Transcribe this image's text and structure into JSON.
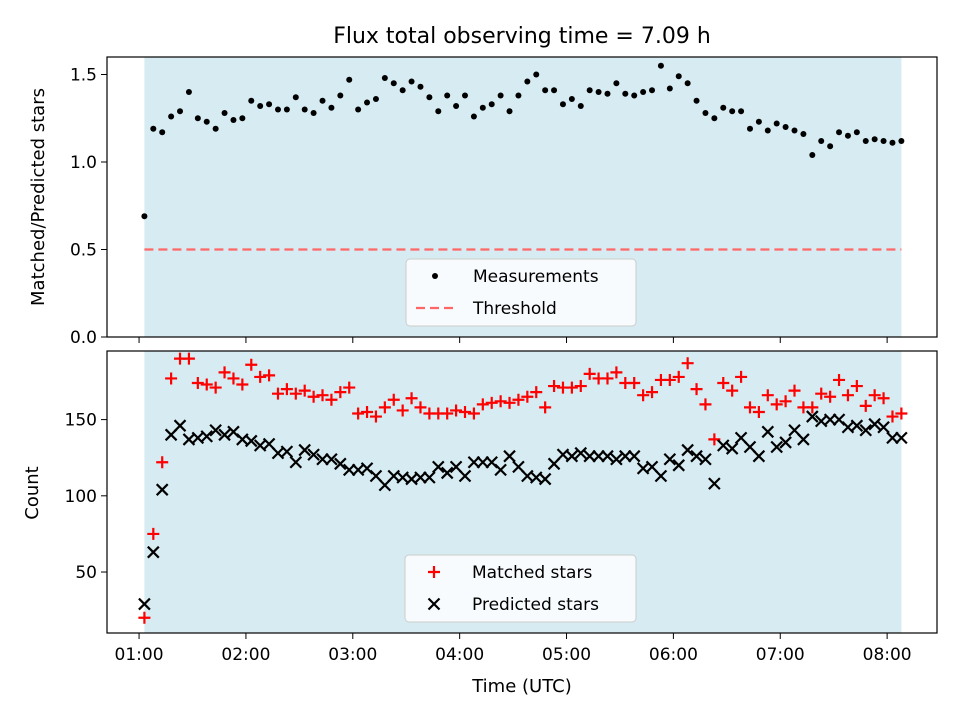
{
  "chart_data": [
    {
      "type": "scatter",
      "title": "Flux total observing time = 7.09 h",
      "ylabel": "Matched/Predicted stars",
      "xlabel": "",
      "xlim": [
        "00:42",
        "08:28"
      ],
      "ylim": [
        0,
        1.6
      ],
      "yticks": [
        0.0,
        0.5,
        1.0,
        1.5
      ],
      "ytick_labels": [
        "0.0",
        "0.5",
        "1.0",
        "1.5"
      ],
      "shaded_span": [
        "01:03",
        "08:08"
      ],
      "shade_color": "#add8e6",
      "legend_position": "lower center",
      "series": [
        {
          "name": "Measurements",
          "marker": "dot",
          "color": "#000000",
          "x": [
            "01:03",
            "01:08",
            "01:13",
            "01:18",
            "01:23",
            "01:28",
            "01:33",
            "01:38",
            "01:43",
            "01:48",
            "01:53",
            "01:58",
            "02:03",
            "02:08",
            "02:13",
            "02:18",
            "02:23",
            "02:28",
            "02:33",
            "02:38",
            "02:43",
            "02:48",
            "02:53",
            "02:58",
            "03:03",
            "03:08",
            "03:13",
            "03:18",
            "03:23",
            "03:28",
            "03:33",
            "03:38",
            "03:43",
            "03:48",
            "03:53",
            "03:58",
            "04:03",
            "04:08",
            "04:13",
            "04:18",
            "04:23",
            "04:28",
            "04:33",
            "04:38",
            "04:43",
            "04:48",
            "04:53",
            "04:58",
            "05:03",
            "05:08",
            "05:13",
            "05:18",
            "05:23",
            "05:28",
            "05:33",
            "05:38",
            "05:43",
            "05:48",
            "05:53",
            "05:58",
            "06:03",
            "06:08",
            "06:13",
            "06:18",
            "06:23",
            "06:28",
            "06:33",
            "06:38",
            "06:43",
            "06:48",
            "06:53",
            "06:58",
            "07:03",
            "07:08",
            "07:13",
            "07:18",
            "07:23",
            "07:28",
            "07:33",
            "07:38",
            "07:43",
            "07:48",
            "07:53",
            "07:58",
            "08:03",
            "08:08"
          ],
          "y": [
            0.69,
            1.19,
            1.17,
            1.26,
            1.29,
            1.4,
            1.25,
            1.23,
            1.19,
            1.28,
            1.24,
            1.25,
            1.35,
            1.32,
            1.33,
            1.3,
            1.3,
            1.37,
            1.3,
            1.28,
            1.35,
            1.31,
            1.38,
            1.47,
            1.3,
            1.34,
            1.36,
            1.48,
            1.45,
            1.41,
            1.46,
            1.43,
            1.37,
            1.29,
            1.38,
            1.32,
            1.38,
            1.26,
            1.31,
            1.33,
            1.38,
            1.29,
            1.38,
            1.46,
            1.5,
            1.41,
            1.41,
            1.33,
            1.36,
            1.32,
            1.41,
            1.4,
            1.39,
            1.45,
            1.39,
            1.38,
            1.4,
            1.41,
            1.55,
            1.42,
            1.49,
            1.45,
            1.35,
            1.28,
            1.25,
            1.31,
            1.29,
            1.29,
            1.19,
            1.23,
            1.18,
            1.22,
            1.2,
            1.18,
            1.16,
            1.04,
            1.12,
            1.09,
            1.17,
            1.15,
            1.17,
            1.12,
            1.13,
            1.12,
            1.11,
            1.12
          ]
        },
        {
          "name": "Threshold",
          "type": "hline",
          "style": "dashed",
          "color": "#ff6666",
          "y": 0.5,
          "x_range": [
            "01:03",
            "08:08"
          ]
        }
      ]
    },
    {
      "type": "scatter",
      "title": "",
      "ylabel": "Count",
      "xlabel": "Time (UTC)",
      "xlim": [
        "00:42",
        "08:28"
      ],
      "ylim": [
        10,
        195
      ],
      "yticks": [
        50,
        100,
        150
      ],
      "ytick_labels": [
        "50",
        "100",
        "150"
      ],
      "xticks": [
        "01:00",
        "02:00",
        "03:00",
        "04:00",
        "05:00",
        "06:00",
        "07:00",
        "08:00"
      ],
      "shaded_span": [
        "01:03",
        "08:08"
      ],
      "shade_color": "#add8e6",
      "legend_position": "lower center",
      "series": [
        {
          "name": "Matched stars",
          "marker": "plus",
          "color": "#ff0000",
          "x": [
            "01:03",
            "01:08",
            "01:13",
            "01:18",
            "01:23",
            "01:28",
            "01:33",
            "01:38",
            "01:43",
            "01:48",
            "01:53",
            "01:58",
            "02:03",
            "02:08",
            "02:13",
            "02:18",
            "02:23",
            "02:28",
            "02:33",
            "02:38",
            "02:43",
            "02:48",
            "02:53",
            "02:58",
            "03:03",
            "03:08",
            "03:13",
            "03:18",
            "03:23",
            "03:28",
            "03:33",
            "03:38",
            "03:43",
            "03:48",
            "03:53",
            "03:58",
            "04:03",
            "04:08",
            "04:13",
            "04:18",
            "04:23",
            "04:28",
            "04:33",
            "04:38",
            "04:43",
            "04:48",
            "04:53",
            "04:58",
            "05:03",
            "05:08",
            "05:13",
            "05:18",
            "05:23",
            "05:28",
            "05:33",
            "05:38",
            "05:43",
            "05:48",
            "05:53",
            "05:58",
            "06:03",
            "06:08",
            "06:13",
            "06:18",
            "06:23",
            "06:28",
            "06:33",
            "06:38",
            "06:43",
            "06:48",
            "06:53",
            "06:58",
            "07:03",
            "07:08",
            "07:13",
            "07:18",
            "07:23",
            "07:28",
            "07:33",
            "07:38",
            "07:43",
            "07:48",
            "07:53",
            "07:58",
            "08:03",
            "08:08"
          ],
          "y": [
            20,
            75,
            122,
            177,
            190,
            190,
            174,
            173,
            171,
            181,
            177,
            173,
            186,
            178,
            179,
            167,
            170,
            167,
            169,
            165,
            166,
            163,
            168,
            171,
            154,
            155,
            152,
            158,
            163,
            156,
            164,
            158,
            154,
            154,
            154,
            156,
            155,
            154,
            160,
            161,
            162,
            161,
            163,
            165,
            168,
            158,
            172,
            171,
            171,
            172,
            180,
            177,
            177,
            181,
            174,
            174,
            166,
            168,
            176,
            176,
            178,
            187,
            170,
            160,
            137,
            174,
            169,
            178,
            158,
            155,
            166,
            160,
            162,
            169,
            158,
            158,
            167,
            165,
            176,
            166,
            172,
            159,
            166,
            164,
            152,
            154
          ]
        },
        {
          "name": "Predicted stars",
          "marker": "x",
          "color": "#000000",
          "x": [
            "01:03",
            "01:08",
            "01:13",
            "01:18",
            "01:23",
            "01:28",
            "01:33",
            "01:38",
            "01:43",
            "01:48",
            "01:53",
            "01:58",
            "02:03",
            "02:08",
            "02:13",
            "02:18",
            "02:23",
            "02:28",
            "02:33",
            "02:38",
            "02:43",
            "02:48",
            "02:53",
            "02:58",
            "03:03",
            "03:08",
            "03:13",
            "03:18",
            "03:23",
            "03:28",
            "03:33",
            "03:38",
            "03:43",
            "03:48",
            "03:53",
            "03:58",
            "04:03",
            "04:08",
            "04:13",
            "04:18",
            "04:23",
            "04:28",
            "04:33",
            "04:38",
            "04:43",
            "04:48",
            "04:53",
            "04:58",
            "05:03",
            "05:08",
            "05:13",
            "05:18",
            "05:23",
            "05:28",
            "05:33",
            "05:38",
            "05:43",
            "05:48",
            "05:53",
            "05:58",
            "06:03",
            "06:08",
            "06:13",
            "06:18",
            "06:23",
            "06:28",
            "06:33",
            "06:38",
            "06:43",
            "06:48",
            "06:53",
            "06:58",
            "07:03",
            "07:08",
            "07:13",
            "07:18",
            "07:23",
            "07:28",
            "07:33",
            "07:38",
            "07:43",
            "07:48",
            "07:53",
            "07:58",
            "08:03",
            "08:08"
          ],
          "y": [
            29,
            63,
            104,
            140,
            146,
            137,
            138,
            139,
            143,
            140,
            142,
            137,
            136,
            133,
            134,
            128,
            129,
            122,
            130,
            127,
            124,
            124,
            121,
            117,
            117,
            118,
            113,
            107,
            113,
            112,
            111,
            112,
            112,
            119,
            115,
            119,
            113,
            122,
            122,
            122,
            117,
            126,
            119,
            113,
            112,
            111,
            121,
            127,
            126,
            128,
            126,
            126,
            126,
            124,
            126,
            126,
            118,
            119,
            113,
            124,
            120,
            130,
            126,
            124,
            108,
            133,
            131,
            138,
            132,
            126,
            142,
            132,
            135,
            143,
            137,
            152,
            149,
            150,
            150,
            145,
            146,
            143,
            147,
            145,
            138,
            138
          ]
        }
      ]
    }
  ]
}
